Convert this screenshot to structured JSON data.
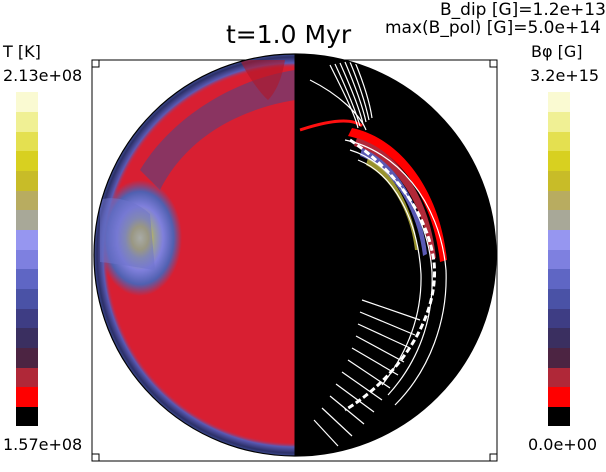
{
  "title": "t=1.0 Myr",
  "annotations": {
    "bdip": "B_dip [G]=1.2e+13",
    "bpol": "max(B_pol) [G]=5.0e+14"
  },
  "left_colorbar": {
    "label": "T [K]",
    "max_label": "2.13e+08",
    "min_label": "1.57e+08",
    "colors": [
      "#000000",
      "#ff0000",
      "#b02838",
      "#4c2442",
      "#3a2f60",
      "#3e3d84",
      "#4a52a6",
      "#5f66c4",
      "#7e80e0",
      "#9696f0",
      "#a8a898",
      "#b8ac60",
      "#c8bc28",
      "#d8d020",
      "#e4e050",
      "#f0f094",
      "#fafad2"
    ]
  },
  "right_colorbar": {
    "label": "Bφ [G]",
    "max_label": "3.2e+15",
    "min_label": "0.0e+00",
    "colors": [
      "#000000",
      "#ff0000",
      "#b02838",
      "#4c2442",
      "#3a2f60",
      "#3e3d84",
      "#4a52a6",
      "#5f66c4",
      "#7e80e0",
      "#9696f0",
      "#a8a898",
      "#b8ac60",
      "#c8bc28",
      "#d8d020",
      "#e4e050",
      "#f0f094",
      "#fafad2"
    ]
  },
  "chart_data": {
    "type": "heatmap",
    "title": "t=1.0 Myr",
    "panels": [
      {
        "side": "left",
        "quantity": "T [K]",
        "range": [
          157000000.0,
          213000000.0
        ]
      },
      {
        "side": "right",
        "quantity": "Bφ [G]",
        "range": [
          0,
          3200000000000000.0
        ]
      }
    ],
    "B_dip_G": 12000000000000.0,
    "max_B_pol_G": 500000000000000.0
  }
}
